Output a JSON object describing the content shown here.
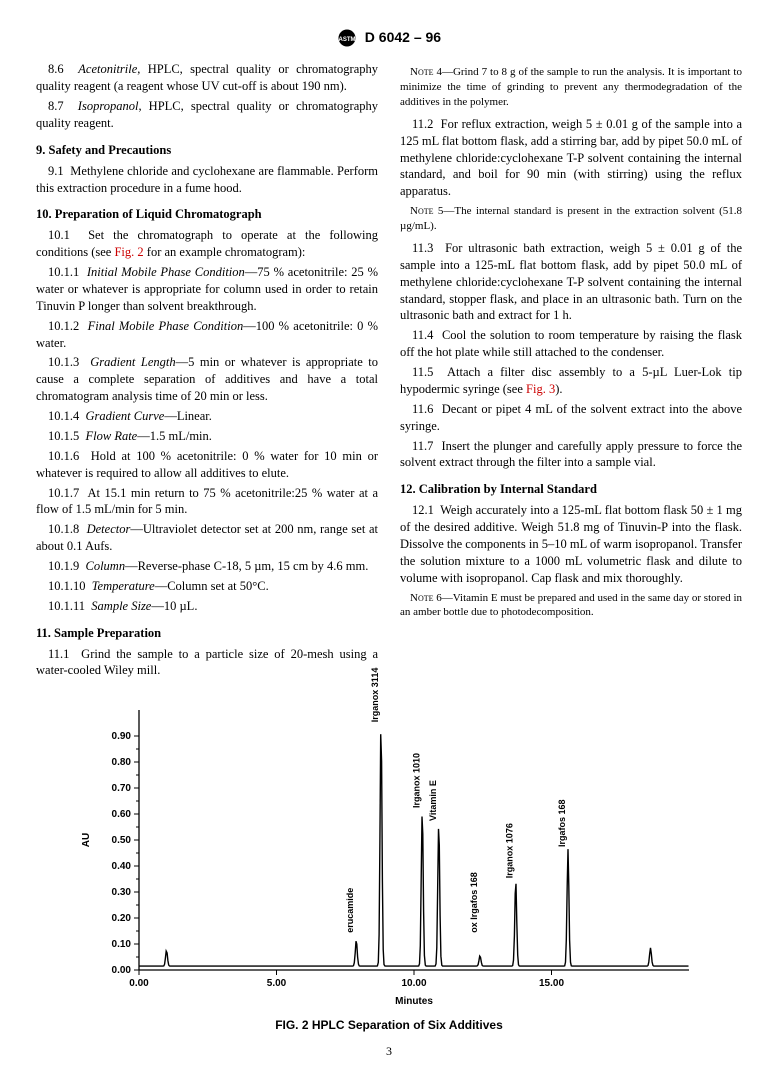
{
  "header": {
    "designation": "D 6042 – 96"
  },
  "left": {
    "p86": {
      "num": "8.6",
      "lead": "Acetonitrile",
      "txt": ", HPLC, spectral quality or chromatography quality reagent (a reagent whose UV cut-off is about 190 nm)."
    },
    "p87": {
      "num": "8.7",
      "lead": "Isopropanol",
      "txt": ", HPLC, spectral quality or chromatography quality reagent."
    },
    "s9": {
      "head": "9.  Safety and Precautions"
    },
    "p91": {
      "num": "9.1",
      "txt": "Methylene chloride and cyclohexane are flammable. Perform this extraction procedure in a fume hood."
    },
    "s10": {
      "head": "10.  Preparation of Liquid Chromatograph"
    },
    "p101": {
      "num": "10.1",
      "txt_a": "Set the chromatograph to operate at the following conditions (see ",
      "fig": "Fig. 2",
      "txt_b": " for an example chromatogram):"
    },
    "p1011": {
      "num": "10.1.1",
      "lead": "Initial Mobile Phase Condition",
      "txt": "—75 % acetonitrile: 25 % water or whatever is appropriate for column used in order to retain Tinuvin P longer than solvent breakthrough."
    },
    "p1012": {
      "num": "10.1.2",
      "lead": "Final Mobile Phase Condition",
      "txt": "—100 % acetonitrile: 0 % water."
    },
    "p1013": {
      "num": "10.1.3",
      "lead": "Gradient Length",
      "txt": "—5 min or whatever is appropriate to cause a complete separation of additives and have a total chromatogram analysis time of 20 min or less."
    },
    "p1014": {
      "num": "10.1.4",
      "lead": "Gradient Curve",
      "txt": "—Linear."
    },
    "p1015": {
      "num": "10.1.5",
      "lead": "Flow Rate",
      "txt": "—1.5 mL/min."
    },
    "p1016": {
      "num": "10.1.6",
      "txt": "Hold at 100 % acetonitrile: 0 % water for 10 min or whatever is required to allow all additives to elute."
    },
    "p1017": {
      "num": "10.1.7",
      "txt": "At 15.1 min return to 75 % acetonitrile:25 % water at a flow of 1.5 mL/min for 5 min."
    },
    "p1018": {
      "num": "10.1.8",
      "lead": "Detector",
      "txt": "—Ultraviolet detector set at 200 nm, range set at about 0.1 Aufs."
    },
    "p1019": {
      "num": "10.1.9",
      "lead": "Column",
      "txt": "—Reverse-phase C-18, 5 µm, 15 cm by 4.6 mm."
    },
    "p10110": {
      "num": "10.1.10",
      "lead": "Temperature",
      "txt": "—Column set at 50°C."
    },
    "p10111": {
      "num": "10.1.11",
      "lead": "Sample Size",
      "txt": "—10 µL."
    },
    "s11": {
      "head": "11.  Sample Preparation"
    },
    "p111": {
      "num": "11.1",
      "txt": "Grind the sample to a particle size of 20-mesh using a water-cooled Wiley mill."
    }
  },
  "right": {
    "note4": {
      "lab": "Note 4—",
      "txt": "Grind 7 to 8 g of the sample to run the analysis. It is important to minimize the time of grinding to prevent any thermodegradation of the additives in the polymer."
    },
    "p112": {
      "num": "11.2",
      "txt": "For reflux extraction, weigh 5 ± 0.01 g of the sample into a 125 mL flat bottom flask, add a stirring bar, add by pipet 50.0 mL of methylene chloride:cyclohexane T-P solvent containing the internal standard, and boil for 90 min (with stirring) using the reflux apparatus."
    },
    "note5": {
      "lab": "Note 5—",
      "txt": "The internal standard is present in the extraction solvent (51.8 µg/mL)."
    },
    "p113": {
      "num": "11.3",
      "txt": "For ultrasonic bath extraction, weigh 5 ± 0.01 g of the sample into a 125-mL flat bottom flask, add by pipet 50.0 mL of methylene chloride:cyclohexane T-P solvent containing the internal standard, stopper flask, and place in an ultrasonic bath. Turn on the ultrasonic bath and extract for 1 h."
    },
    "p114": {
      "num": "11.4",
      "txt": "Cool the solution to room temperature by raising the flask off the hot plate while still attached to the condenser."
    },
    "p115": {
      "num": "11.5",
      "txt_a": "Attach a filter disc assembly to a 5-µL Luer-Lok tip hypodermic syringe (see ",
      "fig": "Fig. 3",
      "txt_b": ")."
    },
    "p116": {
      "num": "11.6",
      "txt": "Decant or pipet 4 mL of the solvent extract into the above syringe."
    },
    "p117": {
      "num": "11.7",
      "txt": "Insert the plunger and carefully apply pressure to force the solvent extract through the filter into a sample vial."
    },
    "s12": {
      "head": "12.  Calibration by Internal Standard"
    },
    "p121": {
      "num": "12.1",
      "txt": "Weigh accurately into a 125-mL flat bottom flask 50 ± 1 mg of the desired additive. Weigh 51.8 mg of Tinuvin-P into the flask. Dissolve the components in 5–10 mL of warm isopropanol. Transfer the solution mixture to a 1000 mL volumetric flask and dilute to volume with isopropanol. Cap flask and mix thoroughly."
    },
    "note6": {
      "lab": "Note 6—",
      "txt": "Vitamin E must be prepared and used in the same day or stored in an amber bottle due to photodecomposition."
    }
  },
  "figure": {
    "caption": "FIG. 2 HPLC Separation of Six Additives",
    "xlabel": "Minutes",
    "ylabel": "AU",
    "background_color": "#ffffff",
    "axis_color": "#000000",
    "xlim": [
      0,
      20
    ],
    "ylim": [
      0,
      1.0
    ],
    "xticks": [
      0.0,
      5.0,
      10.0,
      15.0
    ],
    "yticks": [
      0.0,
      0.1,
      0.2,
      0.3,
      0.4,
      0.5,
      0.6,
      0.7,
      0.8,
      0.9
    ],
    "peaks": [
      {
        "x": 1.0,
        "h": 0.06,
        "label": ""
      },
      {
        "x": 7.9,
        "h": 0.1,
        "label": "erucamide"
      },
      {
        "x": 8.8,
        "h": 0.93,
        "label": "Irganox 3114"
      },
      {
        "x": 10.3,
        "h": 0.6,
        "label": "Irganox 1010"
      },
      {
        "x": 10.9,
        "h": 0.55,
        "label": "Vitamin E"
      },
      {
        "x": 12.4,
        "h": 0.04,
        "label": "ox Irgafos 168"
      },
      {
        "x": 13.7,
        "h": 0.33,
        "label": "Irganox 1076"
      },
      {
        "x": 15.6,
        "h": 0.45,
        "label": "Irgafos 168"
      },
      {
        "x": 18.6,
        "h": 0.07,
        "label": ""
      }
    ],
    "line_color": "#000000",
    "label_fontsize": 9,
    "tick_fontsize": 10
  },
  "page": "3"
}
